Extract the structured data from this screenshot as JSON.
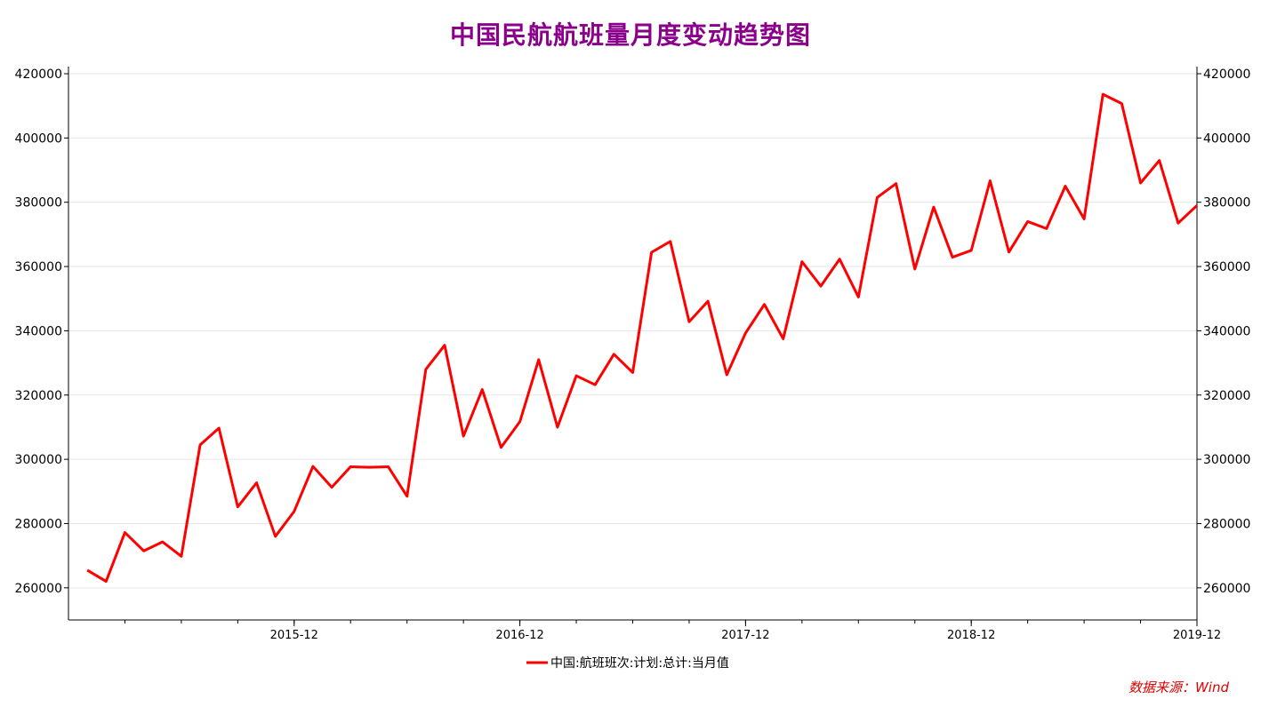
{
  "title": "中国民航航班量月度变动趋势图",
  "source": "数据来源：Wind",
  "colors": {
    "title": "#8B008B",
    "series": "#ff0000",
    "source": "#e00000"
  },
  "chart_data": {
    "type": "line",
    "title": "中国民航航班量月度变动趋势图",
    "ylim": [
      250000,
      420000
    ],
    "yticks": [
      260000,
      280000,
      300000,
      320000,
      340000,
      360000,
      380000,
      400000,
      420000
    ],
    "ytick_labels": [
      "260000",
      "280000",
      "300000",
      "320000",
      "340000",
      "360000",
      "380000",
      "400000",
      "420000"
    ],
    "xlim": [
      "2014-12",
      "2019-12"
    ],
    "xticks": [
      {
        "date": "2015-12",
        "label": "2015-12"
      },
      {
        "date": "2016-12",
        "label": "2016-12"
      },
      {
        "date": "2017-12",
        "label": "2017-12"
      },
      {
        "date": "2018-12",
        "label": "2018-12"
      },
      {
        "date": "2019-12",
        "label": "2019-12"
      }
    ],
    "x": [
      "2015-01",
      "2015-02",
      "2015-03",
      "2015-04",
      "2015-05",
      "2015-06",
      "2015-07",
      "2015-08",
      "2015-09",
      "2015-10",
      "2015-11",
      "2015-12",
      "2016-01",
      "2016-02",
      "2016-03",
      "2016-04",
      "2016-05",
      "2016-06",
      "2016-07",
      "2016-08",
      "2016-09",
      "2016-10",
      "2016-11",
      "2016-12",
      "2017-01",
      "2017-02",
      "2017-03",
      "2017-04",
      "2017-05",
      "2017-06",
      "2017-07",
      "2017-08",
      "2017-09",
      "2017-10",
      "2017-11",
      "2017-12",
      "2018-01",
      "2018-02",
      "2018-03",
      "2018-04",
      "2018-05",
      "2018-06",
      "2018-07",
      "2018-08",
      "2018-09",
      "2018-10",
      "2018-11",
      "2018-12",
      "2019-01",
      "2019-02",
      "2019-03",
      "2019-04",
      "2019-05",
      "2019-06",
      "2019-07",
      "2019-08",
      "2019-09",
      "2019-10",
      "2019-11",
      "2019-12"
    ],
    "series": [
      {
        "name": "中国:航班班次:计划:总计:当月值",
        "values": [
          265500,
          262000,
          277200,
          271500,
          274300,
          269800,
          304500,
          309700,
          285200,
          292700,
          276000,
          283800,
          297800,
          291300,
          297700,
          297500,
          297700,
          288500,
          328000,
          335500,
          307200,
          321700,
          303700,
          311700,
          331000,
          310000,
          326000,
          323200,
          332700,
          327000,
          364400,
          367800,
          342800,
          349200,
          326300,
          339300,
          348200,
          337500,
          361500,
          353900,
          362300,
          350500,
          381500,
          385800,
          359200,
          378500,
          362900,
          365000,
          386700,
          364500,
          374000,
          371800,
          385000,
          374800,
          413600,
          410700,
          386000,
          393000,
          373500,
          379000
        ]
      }
    ],
    "legend": "bottom-center",
    "grid": true
  }
}
